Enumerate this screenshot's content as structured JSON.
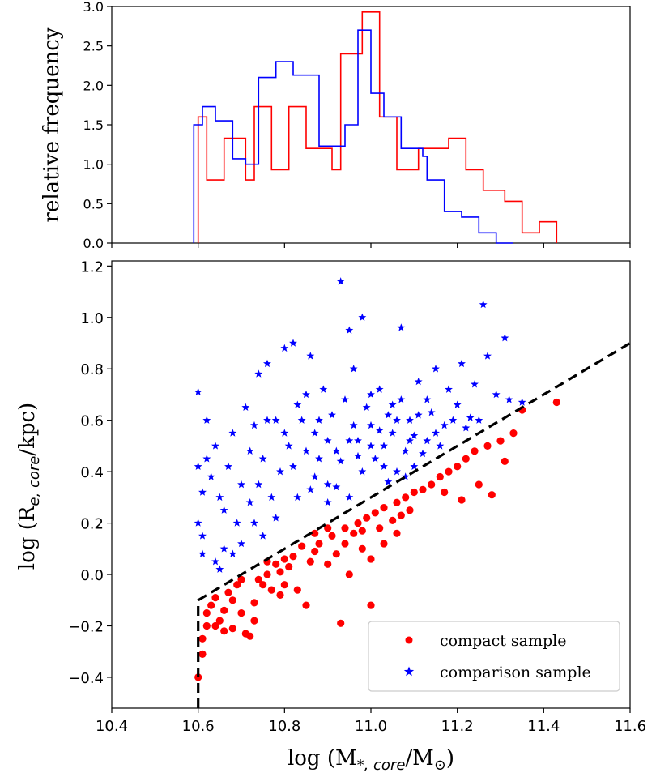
{
  "chart_data": [
    {
      "type": "histogram",
      "ylabel": "relative frequency",
      "xlim": [
        10.4,
        11.6
      ],
      "ylim": [
        0,
        3.0
      ],
      "yticks": [
        "0.0",
        "0.5",
        "1.0",
        "1.5",
        "2.0",
        "2.5",
        "3.0"
      ],
      "series": [
        {
          "color": "#ff0000",
          "edges": [
            10.6,
            10.62,
            10.66,
            10.71,
            10.73,
            10.77,
            10.81,
            10.85,
            10.91,
            10.93,
            10.98,
            11.02,
            11.06,
            11.11,
            11.14,
            11.18,
            11.22,
            11.26,
            11.31,
            11.35,
            11.39,
            11.43
          ],
          "values": [
            1.6,
            0.8,
            1.33,
            0.8,
            1.73,
            0.93,
            1.73,
            1.2,
            0.93,
            2.4,
            2.93,
            1.6,
            0.93,
            1.2,
            1.2,
            1.33,
            0.93,
            0.67,
            0.53,
            0.13,
            0.27
          ]
        },
        {
          "color": "#0000ff",
          "edges": [
            10.59,
            10.61,
            10.64,
            10.68,
            10.71,
            10.74,
            10.78,
            10.82,
            10.85,
            10.88,
            10.94,
            10.97,
            11.0,
            11.03,
            11.07,
            11.12,
            11.13,
            11.17,
            11.21,
            11.25,
            11.29,
            11.33
          ],
          "values": [
            1.5,
            1.73,
            1.55,
            1.07,
            1.0,
            2.1,
            2.3,
            2.13,
            2.13,
            1.23,
            1.5,
            2.7,
            1.9,
            1.6,
            1.2,
            1.1,
            0.8,
            0.4,
            0.33,
            0.13,
            0.0
          ]
        }
      ]
    },
    {
      "type": "scatter",
      "xlabel_parts": {
        "pre": "log  (M",
        "sub": "*, core",
        "mid": "/M",
        "sun": "⊙",
        "post": ")"
      },
      "ylabel_parts": {
        "pre": "log (R",
        "sub": "e, core",
        "post": "/kpc)"
      },
      "xlim": [
        10.4,
        11.6
      ],
      "ylim": [
        -0.52,
        1.22
      ],
      "xticks": [
        "10.4",
        "10.6",
        "10.8",
        "11.0",
        "11.2",
        "11.4",
        "11.6"
      ],
      "yticks": [
        "−0.4",
        "−0.2",
        "0.0",
        "0.2",
        "0.4",
        "0.6",
        "0.8",
        "1.0",
        "1.2"
      ],
      "yticks_values": [
        -0.4,
        -0.2,
        0.0,
        0.2,
        0.4,
        0.6,
        0.8,
        1.0,
        1.2
      ],
      "xticks_values": [
        10.4,
        10.6,
        10.8,
        11.0,
        11.2,
        11.4,
        11.6
      ],
      "divider": {
        "x": [
          10.6,
          10.6,
          11.6
        ],
        "y": [
          -0.52,
          -0.1,
          0.9
        ]
      },
      "legend": {
        "position": "lower-right",
        "entries": [
          "compact sample",
          "comparison sample"
        ]
      },
      "series": [
        {
          "name": "compact sample",
          "marker": "circle",
          "color": "#ff0000",
          "points": [
            [
              10.6,
              -0.4
            ],
            [
              10.61,
              -0.31
            ],
            [
              10.62,
              -0.15
            ],
            [
              10.61,
              -0.25
            ],
            [
              10.63,
              -0.12
            ],
            [
              10.62,
              -0.2
            ],
            [
              10.64,
              -0.2
            ],
            [
              10.65,
              -0.18
            ],
            [
              10.66,
              -0.14
            ],
            [
              10.67,
              -0.07
            ],
            [
              10.68,
              -0.21
            ],
            [
              10.66,
              -0.22
            ],
            [
              10.7,
              -0.15
            ],
            [
              10.72,
              -0.24
            ],
            [
              10.68,
              -0.1
            ],
            [
              10.71,
              -0.23
            ],
            [
              10.74,
              -0.02
            ],
            [
              10.73,
              -0.11
            ],
            [
              10.75,
              -0.04
            ],
            [
              10.76,
              0.0
            ],
            [
              10.77,
              -0.06
            ],
            [
              10.78,
              0.04
            ],
            [
              10.79,
              0.01
            ],
            [
              10.8,
              -0.04
            ],
            [
              10.81,
              0.03
            ],
            [
              10.82,
              0.07
            ],
            [
              10.8,
              0.06
            ],
            [
              10.83,
              -0.06
            ],
            [
              10.84,
              0.11
            ],
            [
              10.85,
              -0.12
            ],
            [
              10.86,
              0.05
            ],
            [
              10.87,
              0.09
            ],
            [
              10.88,
              0.12
            ],
            [
              10.9,
              0.04
            ],
            [
              10.91,
              0.15
            ],
            [
              10.92,
              0.08
            ],
            [
              10.93,
              -0.19
            ],
            [
              10.94,
              0.18
            ],
            [
              10.95,
              0.0
            ],
            [
              10.96,
              0.16
            ],
            [
              10.97,
              0.2
            ],
            [
              10.98,
              0.1
            ],
            [
              10.99,
              0.22
            ],
            [
              11.0,
              -0.12
            ],
            [
              11.01,
              0.24
            ],
            [
              11.02,
              0.18
            ],
            [
              11.03,
              0.26
            ],
            [
              11.05,
              0.21
            ],
            [
              11.06,
              0.28
            ],
            [
              11.07,
              0.23
            ],
            [
              11.08,
              0.3
            ],
            [
              11.09,
              0.25
            ],
            [
              11.1,
              0.32
            ],
            [
              11.12,
              0.33
            ],
            [
              11.14,
              0.35
            ],
            [
              11.16,
              0.38
            ],
            [
              11.17,
              0.32
            ],
            [
              11.18,
              0.4
            ],
            [
              11.2,
              0.42
            ],
            [
              11.21,
              0.29
            ],
            [
              11.22,
              0.45
            ],
            [
              11.24,
              0.48
            ],
            [
              11.25,
              0.35
            ],
            [
              11.27,
              0.5
            ],
            [
              11.28,
              0.31
            ],
            [
              11.3,
              0.52
            ],
            [
              11.31,
              0.44
            ],
            [
              11.33,
              0.55
            ],
            [
              11.35,
              0.64
            ],
            [
              11.43,
              0.67
            ],
            [
              10.87,
              0.16
            ],
            [
              10.9,
              0.18
            ],
            [
              10.94,
              0.12
            ],
            [
              10.98,
              0.17
            ],
            [
              11.0,
              0.06
            ],
            [
              11.03,
              0.12
            ],
            [
              11.06,
              0.16
            ],
            [
              10.76,
              0.05
            ],
            [
              10.79,
              -0.08
            ],
            [
              10.7,
              -0.02
            ],
            [
              10.73,
              -0.18
            ],
            [
              10.69,
              -0.04
            ],
            [
              10.64,
              -0.09
            ]
          ]
        },
        {
          "name": "comparison sample",
          "marker": "star",
          "color": "#0000ff",
          "points": [
            [
              10.93,
              1.14
            ],
            [
              11.26,
              1.05
            ],
            [
              10.98,
              1.0
            ],
            [
              11.07,
              0.96
            ],
            [
              11.31,
              0.92
            ],
            [
              10.95,
              0.95
            ],
            [
              10.6,
              0.71
            ],
            [
              10.61,
              0.32
            ],
            [
              10.6,
              0.2
            ],
            [
              10.62,
              0.45
            ],
            [
              10.61,
              0.15
            ],
            [
              10.64,
              0.05
            ],
            [
              10.65,
              0.02
            ],
            [
              10.66,
              0.25
            ],
            [
              10.66,
              0.1
            ],
            [
              10.68,
              0.55
            ],
            [
              10.7,
              0.35
            ],
            [
              10.71,
              0.65
            ],
            [
              10.72,
              0.28
            ],
            [
              10.73,
              0.58
            ],
            [
              10.74,
              0.78
            ],
            [
              10.75,
              0.15
            ],
            [
              10.76,
              0.82
            ],
            [
              10.78,
              0.6
            ],
            [
              10.79,
              0.4
            ],
            [
              10.8,
              0.88
            ],
            [
              10.81,
              0.5
            ],
            [
              10.82,
              0.9
            ],
            [
              10.83,
              0.3
            ],
            [
              10.85,
              0.7
            ],
            [
              10.86,
              0.85
            ],
            [
              10.87,
              0.55
            ],
            [
              10.88,
              0.45
            ],
            [
              10.89,
              0.72
            ],
            [
              10.9,
              0.35
            ],
            [
              10.91,
              0.62
            ],
            [
              10.92,
              0.48
            ],
            [
              10.94,
              0.68
            ],
            [
              10.95,
              0.3
            ],
            [
              10.96,
              0.8
            ],
            [
              10.97,
              0.52
            ],
            [
              10.98,
              0.4
            ],
            [
              10.99,
              0.65
            ],
            [
              11.0,
              0.58
            ],
            [
              11.01,
              0.45
            ],
            [
              11.02,
              0.72
            ],
            [
              11.03,
              0.5
            ],
            [
              11.04,
              0.62
            ],
            [
              11.05,
              0.55
            ],
            [
              11.06,
              0.4
            ],
            [
              11.07,
              0.68
            ],
            [
              11.08,
              0.48
            ],
            [
              11.09,
              0.6
            ],
            [
              11.1,
              0.42
            ],
            [
              11.11,
              0.75
            ],
            [
              11.13,
              0.52
            ],
            [
              11.14,
              0.63
            ],
            [
              11.15,
              0.8
            ],
            [
              11.17,
              0.58
            ],
            [
              11.18,
              0.72
            ],
            [
              11.2,
              0.66
            ],
            [
              11.21,
              0.82
            ],
            [
              11.23,
              0.61
            ],
            [
              11.24,
              0.74
            ],
            [
              11.27,
              0.85
            ],
            [
              11.29,
              0.7
            ],
            [
              11.32,
              0.68
            ],
            [
              10.63,
              0.38
            ],
            [
              10.64,
              0.5
            ],
            [
              10.67,
              0.42
            ],
            [
              10.69,
              0.2
            ],
            [
              10.72,
              0.48
            ],
            [
              10.74,
              0.35
            ],
            [
              10.77,
              0.3
            ],
            [
              10.8,
              0.55
            ],
            [
              10.82,
              0.42
            ],
            [
              10.84,
              0.6
            ],
            [
              10.87,
              0.38
            ],
            [
              10.9,
              0.52
            ],
            [
              10.93,
              0.44
            ],
            [
              10.96,
              0.58
            ],
            [
              11.0,
              0.5
            ],
            [
              11.03,
              0.42
            ],
            [
              11.06,
              0.6
            ],
            [
              11.09,
              0.52
            ],
            [
              11.12,
              0.47
            ],
            [
              11.15,
              0.55
            ],
            [
              11.19,
              0.6
            ],
            [
              10.65,
              0.3
            ],
            [
              10.7,
              0.12
            ],
            [
              10.75,
              0.45
            ],
            [
              10.78,
              0.22
            ],
            [
              10.85,
              0.48
            ],
            [
              10.88,
              0.6
            ],
            [
              10.92,
              0.34
            ],
            [
              10.97,
              0.46
            ],
            [
              11.02,
              0.56
            ],
            [
              11.05,
              0.66
            ],
            [
              11.08,
              0.38
            ],
            [
              11.11,
              0.62
            ],
            [
              11.16,
              0.5
            ],
            [
              10.62,
              0.6
            ],
            [
              10.68,
              0.08
            ],
            [
              10.76,
              0.6
            ],
            [
              10.83,
              0.66
            ],
            [
              10.9,
              0.28
            ],
            [
              11.0,
              0.7
            ],
            [
              11.1,
              0.54
            ],
            [
              11.25,
              0.6
            ],
            [
              10.6,
              0.42
            ],
            [
              10.61,
              0.08
            ],
            [
              10.73,
              0.2
            ],
            [
              10.86,
              0.33
            ],
            [
              10.95,
              0.52
            ],
            [
              11.04,
              0.36
            ],
            [
              11.13,
              0.68
            ],
            [
              11.22,
              0.57
            ],
            [
              11.35,
              0.67
            ]
          ]
        }
      ]
    }
  ]
}
